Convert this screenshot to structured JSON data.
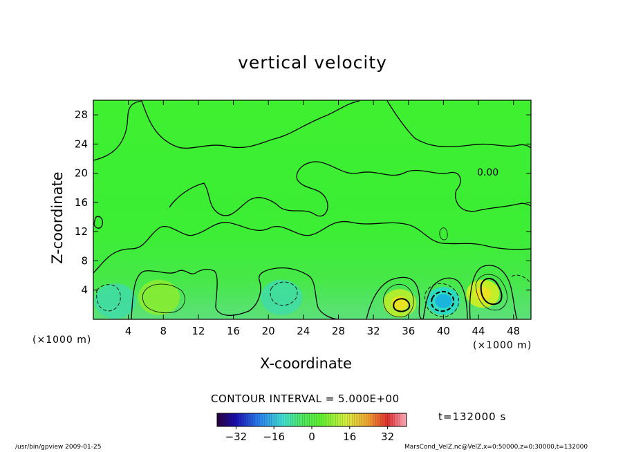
{
  "chart_data": {
    "type": "heatmap",
    "title": "vertical velocity",
    "xlabel": "X-coordinate",
    "ylabel": "Z-coordinate",
    "x_unit_note": "(×1000 m)",
    "z_unit_note": "(×1000 m)",
    "xlim": [
      0,
      50
    ],
    "ylim": [
      0,
      30
    ],
    "x_ticks": [
      4,
      8,
      12,
      16,
      20,
      24,
      28,
      32,
      36,
      40,
      44,
      48
    ],
    "y_ticks": [
      4,
      8,
      12,
      16,
      20,
      24,
      28
    ],
    "contour_interval_text": "CONTOUR INTERVAL = 5.000E+00",
    "contour_label": "0.00",
    "time_text": "t=132000 s",
    "colorbar": {
      "range": [
        -40,
        40
      ],
      "tick_labels": [
        "−32",
        "−16",
        "0",
        "16",
        "32"
      ],
      "tick_values": [
        -32,
        -16,
        0,
        16,
        32
      ]
    },
    "features": [
      {
        "x": 2.5,
        "z": 2.5,
        "sign": "negative",
        "value": -5
      },
      {
        "x": 7.5,
        "z": 3.0,
        "sign": "positive",
        "value": 5
      },
      {
        "x": 21.5,
        "z": 3.0,
        "sign": "negative",
        "value": -5
      },
      {
        "x": 35.0,
        "z": 2.2,
        "sign": "positive",
        "value": 10
      },
      {
        "x": 40.0,
        "z": 2.5,
        "sign": "negative",
        "value": -10
      },
      {
        "x": 44.5,
        "z": 3.5,
        "sign": "positive",
        "value": 15
      }
    ]
  },
  "footer": {
    "left": "/usr/bin/gpview  2009-01-25",
    "right": "MarsCond_VelZ.nc@VelZ,x=0:50000,z=0:30000,t=132000"
  }
}
